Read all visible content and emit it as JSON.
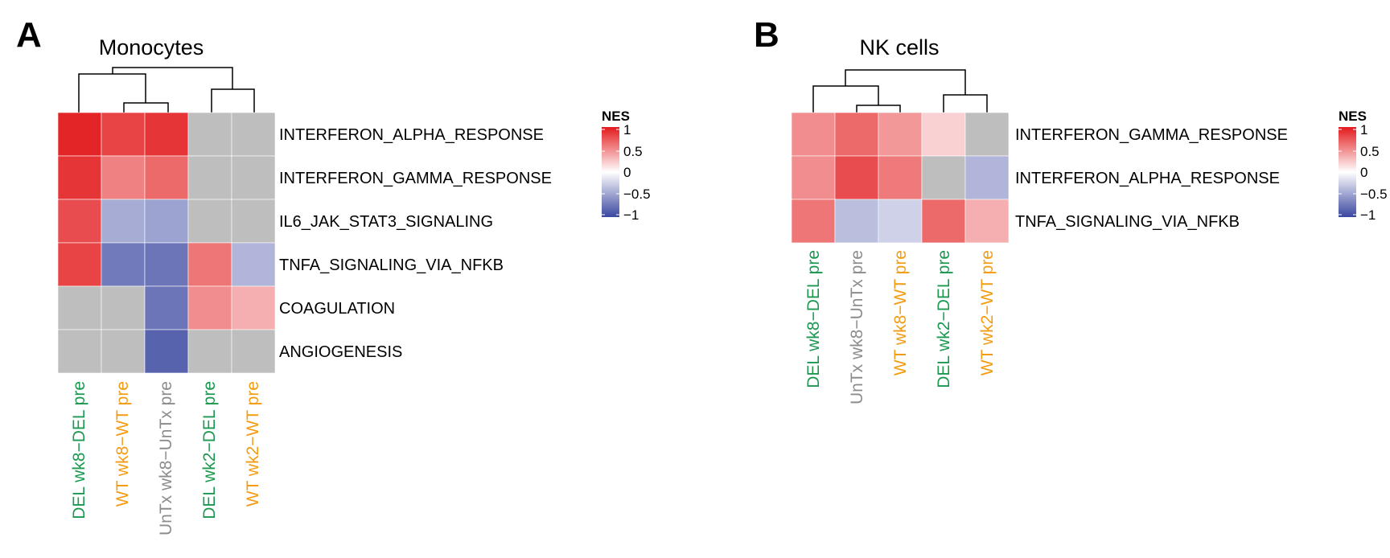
{
  "chart_data": [
    {
      "type": "heatmap",
      "panel_letter": "A",
      "title": "Monocytes",
      "rows": [
        "INTERFERON_ALPHA_RESPONSE",
        "INTERFERON_GAMMA_RESPONSE",
        "IL6_JAK_STAT3_SIGNALING",
        "TNFA_SIGNALING_VIA_NFKB",
        "COAGULATION",
        "ANGIOGENESIS"
      ],
      "columns": [
        {
          "parts": [
            {
              "text": "DEL",
              "color": "#1a9850"
            },
            {
              "text": " wk8−DEL pre",
              "color": "#1a9850"
            }
          ]
        },
        {
          "parts": [
            {
              "text": "WT",
              "color": "#f39c12"
            },
            {
              "text": " wk8−WT pre",
              "color": "#f39c12"
            }
          ]
        },
        {
          "parts": [
            {
              "text": "UnTx",
              "color": "#8c8c8c"
            },
            {
              "text": " wk8−UnTx pre",
              "color": "#8c8c8c"
            }
          ]
        },
        {
          "parts": [
            {
              "text": "DEL",
              "color": "#1a9850"
            },
            {
              "text": " wk2−DEL pre",
              "color": "#1a9850"
            }
          ]
        },
        {
          "parts": [
            {
              "text": "WT",
              "color": "#f39c12"
            },
            {
              "text": " wk2−WT pre",
              "color": "#f39c12"
            }
          ]
        }
      ],
      "values": [
        [
          0.95,
          0.82,
          0.88,
          null,
          null
        ],
        [
          0.88,
          0.55,
          0.65,
          null,
          null
        ],
        [
          0.78,
          -0.45,
          -0.5,
          null,
          null
        ],
        [
          0.82,
          -0.72,
          -0.75,
          0.6,
          -0.4
        ],
        [
          null,
          null,
          -0.75,
          0.5,
          0.35
        ],
        [
          null,
          null,
          -0.85,
          null,
          null
        ]
      ],
      "column_dendrogram": "((DEL wk8, (WT wk8, UnTx wk8)), (DEL wk2, WT wk2))",
      "legend": {
        "title": "NES",
        "ticks": [
          "1",
          "0.5",
          "0",
          "−0.5",
          "−1"
        ],
        "range": [
          -1,
          1
        ]
      }
    },
    {
      "type": "heatmap",
      "panel_letter": "B",
      "title": "NK cells",
      "rows": [
        "INTERFERON_GAMMA_RESPONSE",
        "INTERFERON_ALPHA_RESPONSE",
        "TNFA_SIGNALING_VIA_NFKB"
      ],
      "columns": [
        {
          "parts": [
            {
              "text": "DEL",
              "color": "#1a9850"
            },
            {
              "text": " wk8−DEL pre",
              "color": "#1a9850"
            }
          ]
        },
        {
          "parts": [
            {
              "text": "UnTx",
              "color": "#8c8c8c"
            },
            {
              "text": " wk8−UnTx pre",
              "color": "#8c8c8c"
            }
          ]
        },
        {
          "parts": [
            {
              "text": "WT",
              "color": "#f39c12"
            },
            {
              "text": " wk8−WT pre",
              "color": "#f39c12"
            }
          ]
        },
        {
          "parts": [
            {
              "text": "DEL",
              "color": "#1a9850"
            },
            {
              "text": " wk2−DEL pre",
              "color": "#1a9850"
            }
          ]
        },
        {
          "parts": [
            {
              "text": "WT",
              "color": "#f39c12"
            },
            {
              "text": " wk2−WT pre",
              "color": "#f39c12"
            }
          ]
        }
      ],
      "values": [
        [
          0.5,
          0.65,
          0.45,
          0.2,
          null
        ],
        [
          0.5,
          0.78,
          0.58,
          null,
          -0.4
        ],
        [
          0.6,
          -0.35,
          -0.25,
          0.65,
          0.35
        ]
      ],
      "column_dendrogram": "((DEL wk8, (UnTx wk8, WT wk8)), (DEL wk2, WT wk2))",
      "legend": {
        "title": "NES",
        "ticks": [
          "1",
          "0.5",
          "0",
          "−0.5",
          "−1"
        ],
        "range": [
          -1,
          1
        ]
      }
    }
  ],
  "colors": {
    "high": "#e31a1c",
    "mid": "#ffffff",
    "low": "#3a47a0",
    "na": "#bebebe"
  }
}
